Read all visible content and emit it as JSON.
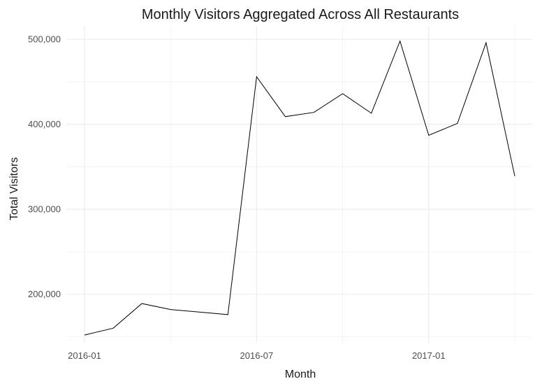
{
  "chart_data": {
    "type": "line",
    "title": "Monthly Visitors Aggregated Across All Restaurants",
    "xlabel": "Month",
    "ylabel": "Total Visitors",
    "x": [
      "2016-01",
      "2016-02",
      "2016-03",
      "2016-04",
      "2016-05",
      "2016-06",
      "2016-07",
      "2016-08",
      "2016-09",
      "2016-10",
      "2016-11",
      "2016-12",
      "2017-01",
      "2017-02",
      "2017-03",
      "2017-04"
    ],
    "series": [
      {
        "values": [
          152000,
          160000,
          189000,
          182000,
          179000,
          176000,
          456000,
          409000,
          414000,
          436000,
          413000,
          498000,
          387000,
          401000,
          496000,
          339000
        ]
      }
    ],
    "x_ticks": [
      "2016-01",
      "2016-07",
      "2017-01"
    ],
    "y_ticks": [
      200000,
      300000,
      400000,
      500000
    ],
    "y_tick_labels": [
      "200,000",
      "300,000",
      "400,000",
      "500,000"
    ],
    "ylim": [
      143000,
      515000
    ],
    "grid": true,
    "line_color": "#000000",
    "grid_color": "#ebebeb"
  }
}
